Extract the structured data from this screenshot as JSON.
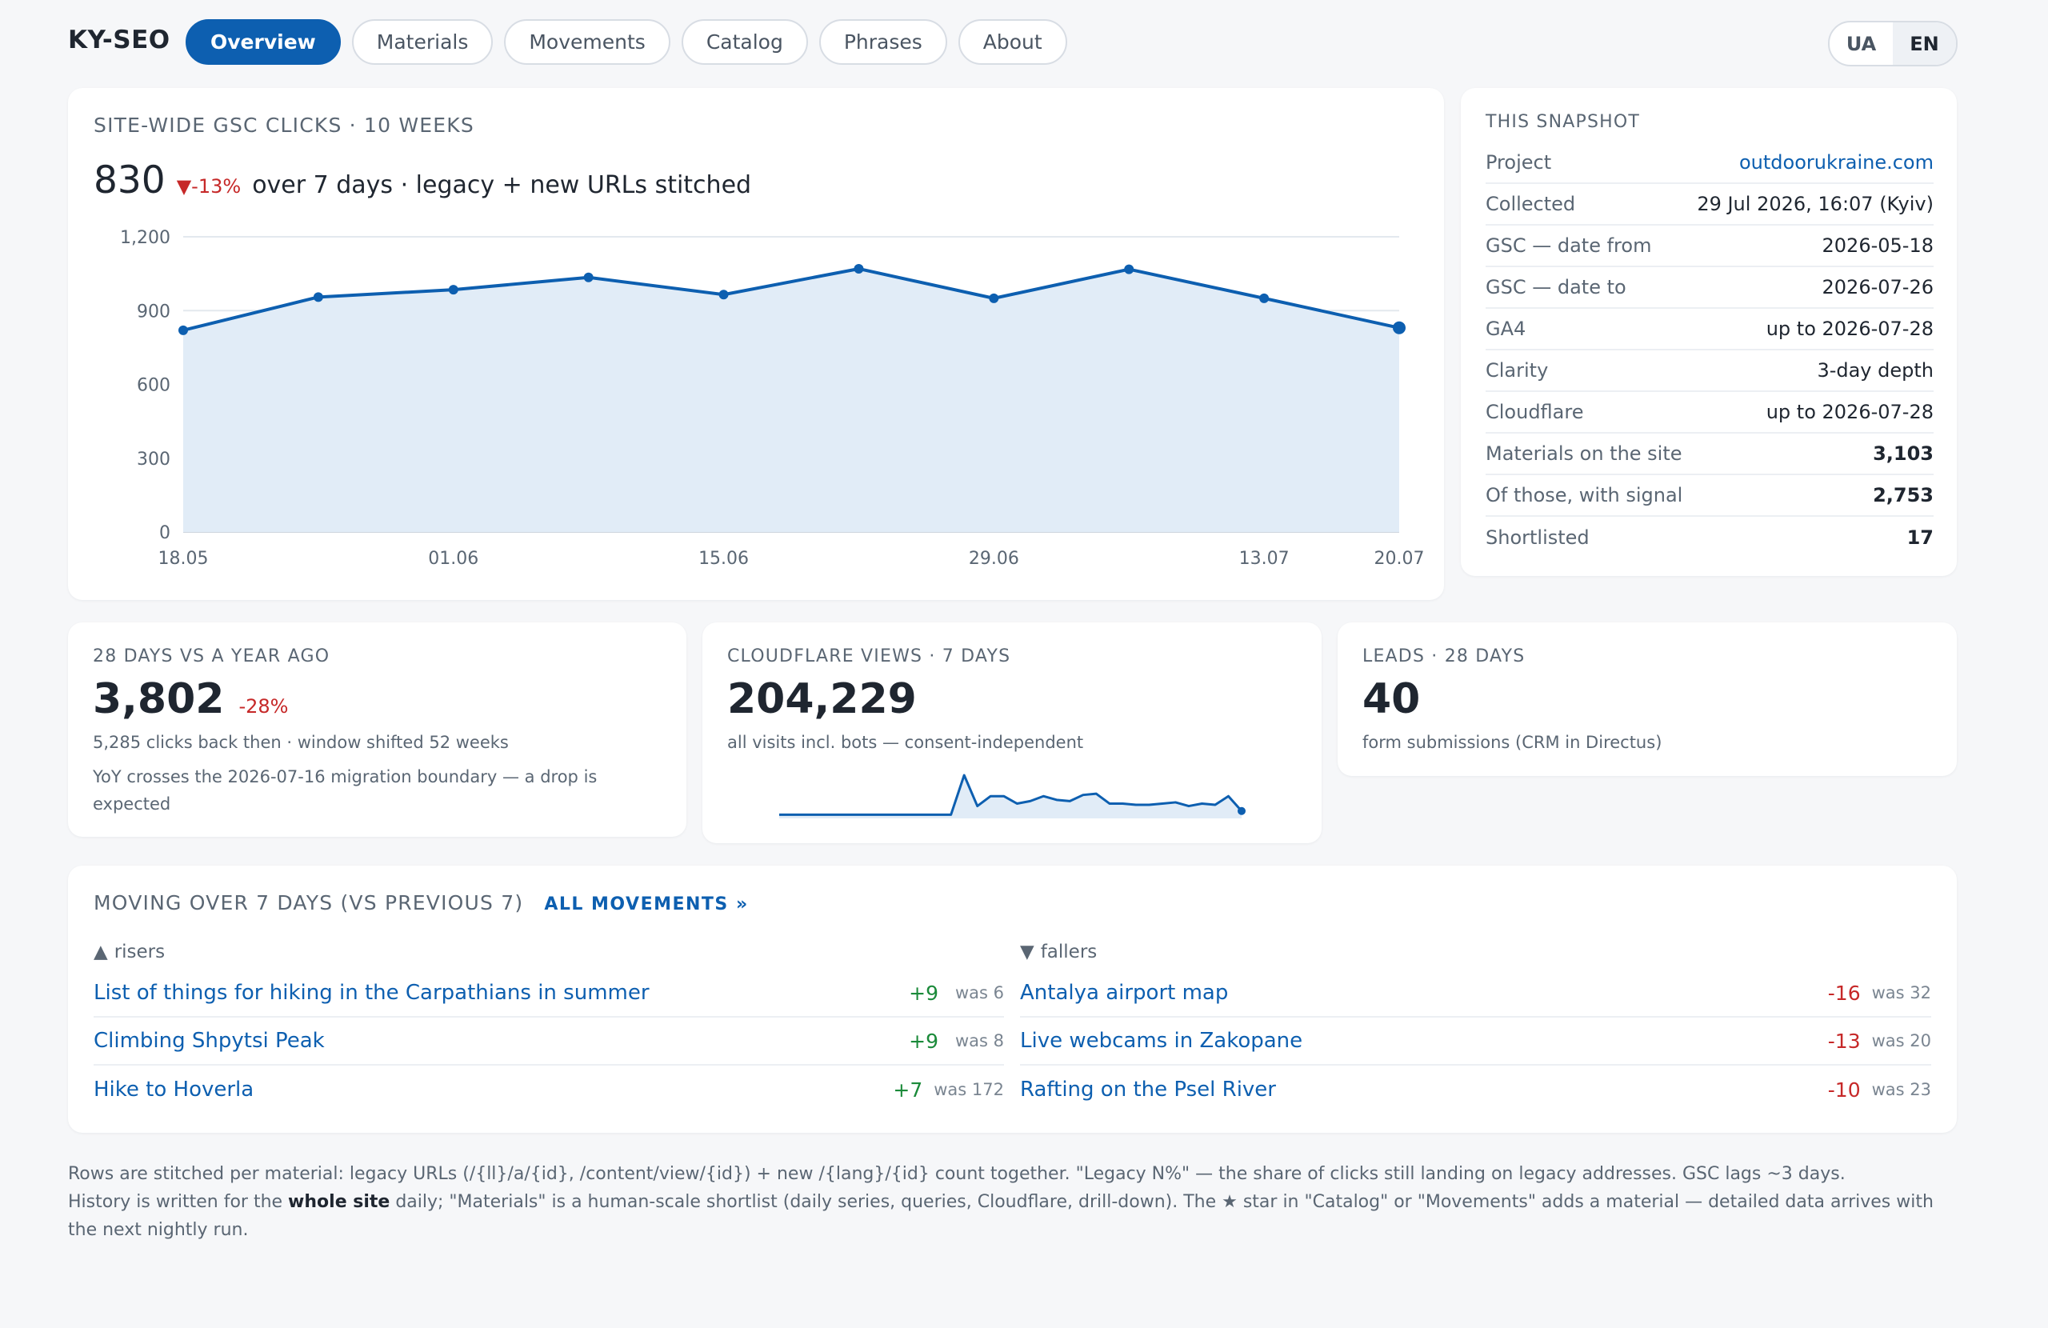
{
  "brand": "KY-SEO",
  "nav": {
    "tabs": [
      {
        "label": "Overview",
        "active": true
      },
      {
        "label": "Materials",
        "active": false
      },
      {
        "label": "Movements",
        "active": false
      },
      {
        "label": "Catalog",
        "active": false
      },
      {
        "label": "Phrases",
        "active": false
      },
      {
        "label": "About",
        "active": false
      }
    ]
  },
  "lang": {
    "ua": "UA",
    "en": "EN",
    "active": "EN"
  },
  "clicks_card": {
    "title": "SITE-WIDE GSC CLICKS · 10 WEEKS",
    "value": "830",
    "delta": "▼-13%",
    "note": "over 7 days · legacy + new URLs stitched"
  },
  "chart_data": {
    "type": "area",
    "x": [
      "18.05",
      "25.05",
      "01.06",
      "08.06",
      "15.06",
      "22.06",
      "29.06",
      "06.07",
      "13.07",
      "20.07"
    ],
    "tick_labels": [
      "18.05",
      "01.06",
      "15.06",
      "29.06",
      "13.07",
      "20.07"
    ],
    "series": [
      {
        "values": [
          820,
          955,
          985,
          1035,
          965,
          1070,
          950,
          1068,
          950,
          830
        ]
      }
    ],
    "yticks": [
      "0",
      "300",
      "600",
      "900",
      "1,200"
    ],
    "ylim": [
      0,
      1200
    ],
    "grid": true,
    "color": "#0d5fb0",
    "fill": "#e1ecf7"
  },
  "snapshot": {
    "title": "THIS SNAPSHOT",
    "rows": [
      {
        "key": "Project",
        "value": "outdoorukraine.com"
      },
      {
        "key": "Collected",
        "value": "29 Jul 2026, 16:07 (Kyiv)"
      },
      {
        "key": "GSC — date from",
        "value": "2026-05-18"
      },
      {
        "key": "GSC — date to",
        "value": "2026-07-26"
      },
      {
        "key": "GA4",
        "value": "up to 2026-07-28"
      },
      {
        "key": "Clarity",
        "value": "3-day depth"
      },
      {
        "key": "Cloudflare",
        "value": "up to 2026-07-28"
      },
      {
        "key": "Materials on the site",
        "value": "3,103"
      },
      {
        "key": "Of those, with signal",
        "value": "2,753"
      },
      {
        "key": "Shortlisted",
        "value": "17"
      }
    ]
  },
  "kpi_yoy": {
    "title": "28 DAYS VS A YEAR AGO",
    "value": "3,802",
    "delta": "-28%",
    "sub": "5,285 clicks back then · window shifted 52 weeks",
    "sub2": "YoY crosses the 2026-07-16 migration boundary — a drop is expected"
  },
  "kpi_cf": {
    "title": "CLOUDFLARE VIEWS · 7 DAYS",
    "value": "204,229",
    "sub": "all visits incl. bots — consent-independent",
    "spark": [
      3,
      3,
      3,
      3,
      3,
      3,
      3,
      3,
      3,
      3,
      3,
      3,
      3,
      3,
      35,
      10,
      18,
      18,
      12,
      14,
      18,
      15,
      14,
      19,
      20,
      12,
      12,
      11,
      11,
      12,
      13,
      10,
      12,
      11,
      18,
      6
    ]
  },
  "kpi_leads": {
    "title": "LEADS · 28 DAYS",
    "value": "40",
    "sub": "form submissions (CRM in Directus)"
  },
  "movements": {
    "title": "MOVING OVER 7 DAYS (VS PREVIOUS 7)",
    "link": "ALL MOVEMENTS »",
    "risers_label": "risers",
    "fallers_label": "fallers",
    "risers": [
      {
        "name": "List of things for hiking in the Carpathians in summer",
        "delta": "+9",
        "was": "was 6"
      },
      {
        "name": "Climbing Shpytsi Peak",
        "delta": "+9",
        "was": "was 8"
      },
      {
        "name": "Hike to Hoverla",
        "delta": "+7",
        "was": "was 172"
      }
    ],
    "fallers": [
      {
        "name": "Antalya airport map",
        "delta": "-16",
        "was": "was 32"
      },
      {
        "name": "Live webcams in Zakopane",
        "delta": "-13",
        "was": "was 20"
      },
      {
        "name": "Rafting on the Psel River",
        "delta": "-10",
        "was": "was 23"
      }
    ]
  },
  "footer": {
    "line1": "Rows are stitched per material: legacy URLs (/{ll}/a/{id}, /content/view/{id}) + new /{lang}/{id} count together. \"Legacy N%\" — the share of clicks still landing on legacy addresses. GSC lags ~3 days.",
    "line2_pre": "History is written for the ",
    "line2_bold": "whole site",
    "line2_post": " daily; \"Materials\" is a human-scale shortlist (daily series, queries, Cloudflare, drill-down). The ★ star in \"Catalog\" or \"Movements\" adds a material — detailed data arrives with the next nightly run."
  }
}
